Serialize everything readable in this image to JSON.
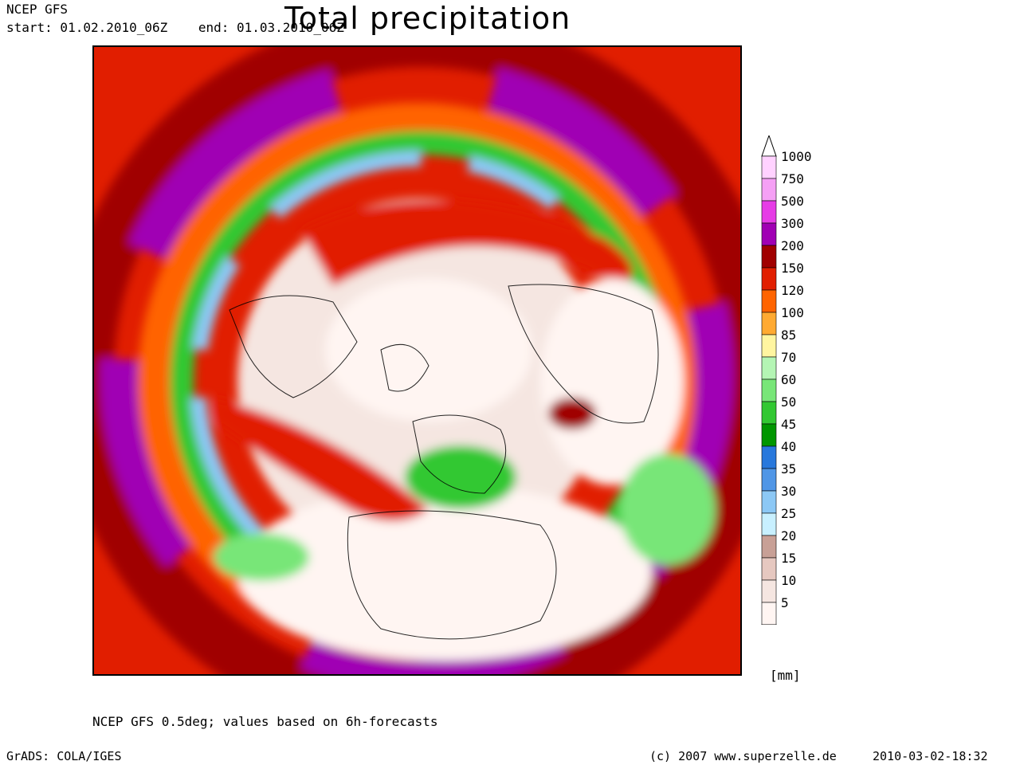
{
  "header": {
    "model": "NCEP GFS",
    "range": "start: 01.02.2010_06Z    end: 01.03.2010_06Z",
    "title": "Total precipitation"
  },
  "map": {
    "projection": "north polar stereographic",
    "variable": "total precipitation"
  },
  "colorbar": {
    "units": "[mm]",
    "levels": [
      {
        "label": "1000",
        "color": "#ffd2ff"
      },
      {
        "label": "750",
        "color": "#f5a0f5"
      },
      {
        "label": "500",
        "color": "#e63ce6"
      },
      {
        "label": "300",
        "color": "#a000b4"
      },
      {
        "label": "200",
        "color": "#a00000"
      },
      {
        "label": "150",
        "color": "#e11e00"
      },
      {
        "label": "120",
        "color": "#ff6400"
      },
      {
        "label": "100",
        "color": "#ffaa32"
      },
      {
        "label": "85",
        "color": "#fff5a0"
      },
      {
        "label": "70",
        "color": "#b4f5b4"
      },
      {
        "label": "60",
        "color": "#78e678"
      },
      {
        "label": "50",
        "color": "#32c832"
      },
      {
        "label": "45",
        "color": "#009600"
      },
      {
        "label": "40",
        "color": "#2878dc"
      },
      {
        "label": "35",
        "color": "#5096e6"
      },
      {
        "label": "30",
        "color": "#8cc8f5"
      },
      {
        "label": "25",
        "color": "#c8f0ff"
      },
      {
        "label": "20",
        "color": "#c8a096"
      },
      {
        "label": "15",
        "color": "#e6c8c0"
      },
      {
        "label": "10",
        "color": "#f5e6e1"
      },
      {
        "label": "5",
        "color": "#fff5f2"
      }
    ]
  },
  "footer": {
    "note": "NCEP GFS 0.5deg; values based on 6h-forecasts",
    "grads": "GrADS: COLA/IGES",
    "copyright": "(c) 2007 www.superzelle.de",
    "timestamp": "2010-03-02-18:32"
  }
}
